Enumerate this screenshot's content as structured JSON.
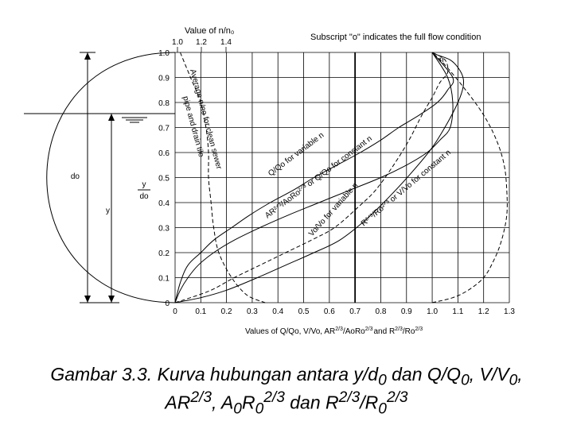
{
  "chart_data": {
    "type": "line",
    "top_axis_title": "Value of n/n₀",
    "top_tick_labels": [
      "1.0",
      "1.2",
      "1.4"
    ],
    "note": "Subscript \"o\" indicates the full flow condition",
    "xlabel": "Values of Q/Qo, V/Vo, AR²ᐟ³/AoRo²ᐟ³ and R²ᐟ³/Ro²ᐟ³",
    "xlabel_parts": {
      "a": "Values of Q/Qo, V/Vo, AR",
      "a_sup": "2/3",
      "b": "/AoRo",
      "b_sup": "2/3",
      "c": "and R",
      "c_sup": "2/3",
      "d": "/Ro",
      "d_sup": "2/3"
    },
    "x_tick_labels": [
      "0",
      "0.1",
      "0.2",
      "0.3",
      "0.4",
      "0.5",
      "0.6",
      "0.7",
      "0.8",
      "0.9",
      "1.0",
      "1.1",
      "1.2",
      "1.3"
    ],
    "y_tick_labels": [
      "0",
      "0.1",
      "0.2",
      "0.3",
      "0.4",
      "0.5",
      "0.6",
      "0.7",
      "0.8",
      "0.9",
      "1.0"
    ],
    "xlim": [
      0,
      1.3
    ],
    "ylim": [
      0,
      1.0
    ],
    "grid": true,
    "pipe_labels": {
      "depth_full": "do",
      "depth": "y",
      "ratio_num": "y",
      "ratio_den": "do"
    },
    "curve_labels": {
      "n_ratio": "Average n/no for clean sewer pipe and drain tile",
      "q_var": "Q/Qo for variable n",
      "ar": "AR²ᐟ³/AoRo²ᐟ³ or Q/Qo for constant n",
      "v_var": "Vo/Vo for variable n",
      "r": "R²ᐟ³/Ro²ᐟ³ or V/Vo for constant n",
      "n": "n"
    },
    "series": [
      {
        "key": "n_ratio",
        "style": "dashed",
        "x": [
          1.0,
          1.08,
          1.14,
          1.2,
          1.24,
          1.27,
          1.29,
          1.29,
          1.28,
          1.25,
          1.2,
          1.13,
          1.05,
          1.0
        ],
        "y": [
          0.0,
          0.02,
          0.05,
          0.1,
          0.17,
          0.25,
          0.35,
          0.45,
          0.55,
          0.65,
          0.75,
          0.85,
          0.95,
          1.0
        ]
      },
      {
        "key": "q_var",
        "style": "solid",
        "x": [
          0.0,
          0.02,
          0.05,
          0.09,
          0.15,
          0.23,
          0.33,
          0.44,
          0.56,
          0.68,
          0.8,
          0.9,
          0.98,
          1.03,
          1.07,
          1.08,
          1.06,
          1.0
        ],
        "y": [
          0.0,
          0.05,
          0.1,
          0.15,
          0.2,
          0.25,
          0.3,
          0.35,
          0.4,
          0.45,
          0.5,
          0.55,
          0.6,
          0.65,
          0.7,
          0.8,
          0.9,
          1.0
        ]
      },
      {
        "key": "ar",
        "style": "solid",
        "x": [
          0.0,
          0.02,
          0.05,
          0.1,
          0.15,
          0.22,
          0.29,
          0.37,
          0.46,
          0.54,
          0.63,
          0.72,
          0.8,
          0.87,
          0.95,
          1.02,
          1.06,
          1.08,
          1.0
        ],
        "y": [
          0.0,
          0.08,
          0.15,
          0.2,
          0.25,
          0.3,
          0.35,
          0.4,
          0.45,
          0.5,
          0.55,
          0.6,
          0.65,
          0.7,
          0.75,
          0.8,
          0.85,
          0.9,
          1.0
        ]
      },
      {
        "key": "v_var",
        "style": "dashed",
        "x": [
          0.0,
          0.06,
          0.14,
          0.23,
          0.33,
          0.43,
          0.53,
          0.62,
          0.71,
          0.78,
          0.85,
          0.91,
          0.96,
          1.0,
          1.03,
          1.06,
          1.05,
          1.0
        ],
        "y": [
          0.0,
          0.02,
          0.05,
          0.1,
          0.15,
          0.2,
          0.25,
          0.3,
          0.38,
          0.45,
          0.55,
          0.65,
          0.75,
          0.82,
          0.88,
          0.92,
          0.97,
          1.0
        ]
      },
      {
        "key": "r",
        "style": "solid",
        "x": [
          0.0,
          0.1,
          0.2,
          0.32,
          0.43,
          0.54,
          0.64,
          0.74,
          0.83,
          0.92,
          1.0,
          1.06,
          1.1,
          1.12,
          1.12,
          1.1,
          1.07,
          1.02,
          1.0
        ],
        "y": [
          0.0,
          0.02,
          0.05,
          0.1,
          0.15,
          0.2,
          0.25,
          0.33,
          0.42,
          0.52,
          0.62,
          0.72,
          0.8,
          0.86,
          0.9,
          0.94,
          0.97,
          0.99,
          1.0
        ]
      },
      {
        "key": "dashed_left",
        "style": "dashed",
        "x": [
          0.02,
          0.06,
          0.1,
          0.12,
          0.13,
          0.13,
          0.14,
          0.15,
          0.17,
          0.22,
          0.28,
          0.35
        ],
        "y": [
          1.0,
          0.9,
          0.8,
          0.7,
          0.6,
          0.5,
          0.4,
          0.3,
          0.2,
          0.1,
          0.03,
          0.0
        ]
      }
    ]
  },
  "caption": {
    "line1": "Gambar 3.3. Kurva hubungan antara y/d₀ dan Q/Q₀, V/V₀,",
    "line1_parts": {
      "a": "Gambar 3.3. Kurva hubungan antara y/d",
      "a_sub": "0",
      "b": " dan Q/Q",
      "b_sub": "0",
      "c": ", V/V",
      "c_sub": "0",
      "d": ","
    },
    "line2": "AR²ᐟ³, A₀R₀²ᐟ³ dan R²ᐟ³/R₀²ᐟ³",
    "line2_parts": {
      "a": "AR",
      "a_sup": "2/3",
      "b": ", A",
      "b_sub": "0",
      "c": "R",
      "c_sub": "0",
      "c_sup": "2/3",
      "d": " dan R",
      "d_sup": "2/3",
      "e": "/R",
      "e_sub": "0",
      "e_sup": "2/3"
    }
  }
}
